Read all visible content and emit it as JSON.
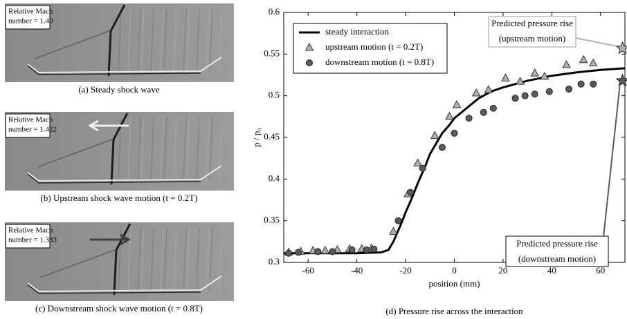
{
  "panels": [
    {
      "label": [
        "Relative Mach",
        "number = 1.40"
      ],
      "caption": "(a) Steady shock wave"
    },
    {
      "label": [
        "Relative Mach",
        "number = 1.422"
      ],
      "caption": "(b) Upstream shock wave motion (t = 0.2T)"
    },
    {
      "label": [
        "Relative Mach",
        "number = 1.383"
      ],
      "caption": "(c) Downstream shock wave motion (t = 0.8T)"
    }
  ],
  "chart_data": {
    "type": "line",
    "caption": "(d) Pressure rise across the interaction",
    "xlabel": "position (mm)",
    "ylabel": "p / p₀",
    "xlim": [
      -70,
      70
    ],
    "xticks": [
      -60,
      -40,
      -20,
      0,
      20,
      40,
      60
    ],
    "ylim": [
      0.3,
      0.6
    ],
    "yticks": [
      0.3,
      0.35,
      0.4,
      0.45,
      0.5,
      0.55,
      0.6
    ],
    "legend": "upper left",
    "series": [
      {
        "name": "steady interaction",
        "color": "#000000",
        "marker": "none",
        "x": [
          -70,
          -40,
          -30,
          -27,
          -25,
          -22,
          -20,
          -17,
          -15,
          -12,
          -10,
          -8,
          -5,
          -2,
          0,
          5,
          10,
          15,
          20,
          30,
          40,
          50,
          60,
          70
        ],
        "values": [
          0.311,
          0.311,
          0.312,
          0.315,
          0.325,
          0.345,
          0.36,
          0.38,
          0.395,
          0.415,
          0.43,
          0.44,
          0.455,
          0.465,
          0.473,
          0.485,
          0.497,
          0.505,
          0.51,
          0.518,
          0.524,
          0.528,
          0.531,
          0.533
        ]
      },
      {
        "name": "upstream motion (t = 0.2T)",
        "color": "#b0b0b0",
        "marker": "triangle",
        "x": [
          -68,
          -63,
          -58,
          -53,
          -48,
          -43,
          -38,
          -34,
          -25,
          -19,
          -15,
          -8,
          -2,
          1,
          9,
          14,
          21,
          27,
          33,
          37,
          46,
          53,
          57
        ],
        "values": [
          0.312,
          0.313,
          0.314,
          0.314,
          0.315,
          0.316,
          0.316,
          0.317,
          0.337,
          0.382,
          0.419,
          0.452,
          0.475,
          0.489,
          0.503,
          0.507,
          0.521,
          0.517,
          0.527,
          0.523,
          0.537,
          0.543,
          0.539
        ]
      },
      {
        "name": "downstream motion (t = 0.8T)",
        "color": "#5a5a5a",
        "marker": "circle",
        "x": [
          -68,
          -64,
          -56,
          -50,
          -42,
          -36,
          -33,
          -23,
          -18,
          -13,
          -5,
          0,
          6,
          12,
          16,
          25,
          29,
          33,
          39,
          47,
          52,
          57
        ],
        "values": [
          0.311,
          0.312,
          0.313,
          0.313,
          0.315,
          0.315,
          0.316,
          0.35,
          0.384,
          0.413,
          0.438,
          0.455,
          0.473,
          0.48,
          0.485,
          0.497,
          0.5,
          0.502,
          0.505,
          0.508,
          0.514,
          0.514
        ]
      }
    ],
    "annotations": [
      {
        "lines": [
          "Predicted pressure rise",
          "(upstream motion)"
        ],
        "x": 69,
        "y": 0.557,
        "color": "#b0b0b0"
      },
      {
        "lines": [
          "Predicted pressure rise",
          "(downstream motion)"
        ],
        "x": 69,
        "y": 0.518,
        "color": "#5a5a5a"
      }
    ]
  }
}
